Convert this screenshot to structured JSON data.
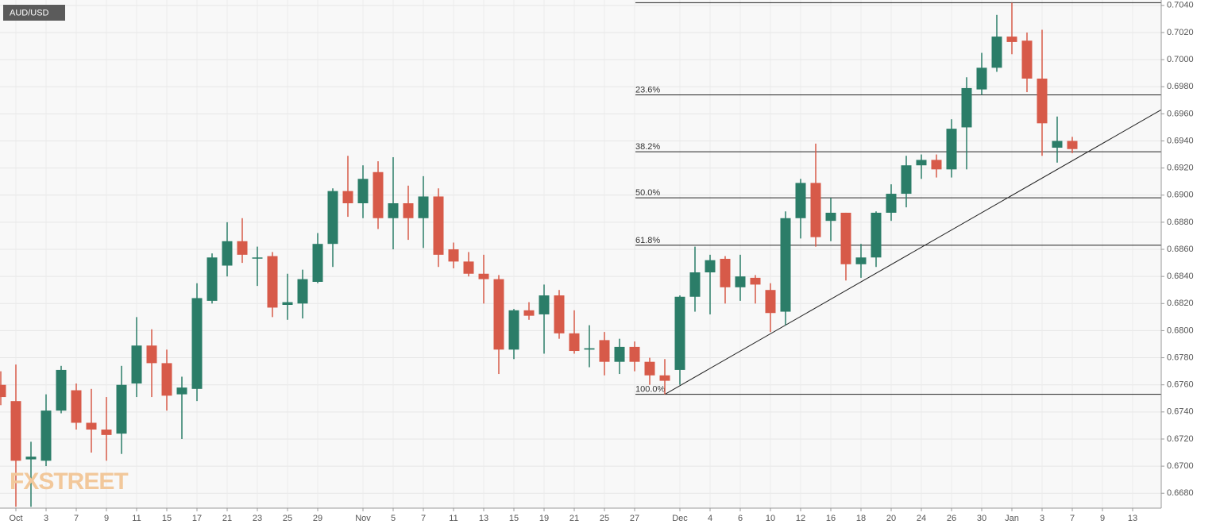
{
  "chart_data": {
    "type": "candlestick",
    "title": "AUD/USD",
    "watermark": "FXSTREET",
    "categories": [
      null,
      "Oct",
      null,
      "3",
      null,
      "7",
      null,
      "9",
      null,
      "11",
      null,
      "15",
      null,
      "17",
      null,
      "21",
      null,
      "23",
      null,
      "25",
      null,
      "29",
      null,
      null,
      "Nov",
      null,
      "5",
      null,
      "7",
      null,
      "11",
      null,
      "13",
      null,
      "15",
      null,
      "19",
      null,
      "21",
      null,
      "25",
      null,
      "27",
      null,
      null,
      "Dec",
      null,
      "4",
      null,
      "6",
      null,
      "10",
      null,
      "12",
      null,
      "16",
      null,
      "18",
      null,
      "20",
      null,
      "24",
      null,
      "26",
      null,
      "30",
      null,
      "Jan",
      null,
      "3",
      null,
      "7",
      null,
      "9",
      null,
      "13"
    ],
    "open": [
      0.676,
      0.6748,
      0.6705,
      0.6704,
      0.6741,
      0.6756,
      0.6732,
      0.6727,
      0.6724,
      0.6761,
      0.6789,
      0.6776,
      0.6753,
      0.6757,
      0.6822,
      0.6848,
      0.6866,
      0.6854,
      0.6855,
      0.6819,
      0.682,
      0.6836,
      0.6864,
      0.6903,
      0.6894,
      0.6917,
      0.6883,
      0.6894,
      0.6883,
      0.6899,
      0.686,
      0.6851,
      0.6842,
      0.6838,
      0.6786,
      0.6815,
      0.6812,
      0.6826,
      0.6798,
      0.6786,
      0.6793,
      0.6777,
      0.6788,
      0.6777,
      0.6767,
      0.6771,
      0.6825,
      0.6843,
      0.6853,
      0.6832,
      0.6839,
      0.683,
      0.6814,
      0.6883,
      0.6909,
      0.6881,
      0.6887,
      0.6849,
      0.6854,
      0.6887,
      0.6901,
      0.6922,
      0.6926,
      0.6919,
      0.695,
      0.6978,
      0.6994,
      0.7017,
      0.7014,
      0.6986,
      0.6935,
      0.694,
      null,
      null,
      null,
      null
    ],
    "close": [
      0.6751,
      0.6704,
      0.6707,
      0.6741,
      0.6771,
      0.6732,
      0.6727,
      0.6723,
      0.676,
      0.6789,
      0.6776,
      0.6752,
      0.6758,
      0.6824,
      0.6854,
      0.6866,
      0.6856,
      0.6854,
      0.6817,
      0.6821,
      0.6838,
      0.6864,
      0.6903,
      0.6894,
      0.6912,
      0.6883,
      0.6894,
      0.6883,
      0.6899,
      0.6856,
      0.6851,
      0.6842,
      0.6838,
      0.6786,
      0.6815,
      0.6811,
      0.6826,
      0.6798,
      0.6785,
      0.6787,
      0.6777,
      0.6788,
      0.6777,
      0.6767,
      0.6763,
      0.6825,
      0.6843,
      0.6852,
      0.6832,
      0.684,
      0.6834,
      0.6813,
      0.6883,
      0.6909,
      0.6869,
      0.6887,
      0.6849,
      0.6854,
      0.6887,
      0.6901,
      0.6922,
      0.6926,
      0.6919,
      0.6949,
      0.6979,
      0.6994,
      0.7017,
      0.7013,
      0.6986,
      0.6953,
      0.694,
      0.6934,
      null,
      null,
      null,
      null
    ],
    "high": [
      0.677,
      0.6775,
      0.6718,
      0.6753,
      0.6774,
      0.6761,
      0.6757,
      0.6751,
      0.6774,
      0.681,
      0.6801,
      0.6786,
      0.6766,
      0.6835,
      0.6857,
      0.688,
      0.6883,
      0.6862,
      0.6858,
      0.6842,
      0.6845,
      0.6872,
      0.6905,
      0.6929,
      0.6922,
      0.6925,
      0.6928,
      0.6907,
      0.6914,
      0.6905,
      0.6865,
      0.6858,
      0.6856,
      0.6841,
      0.6816,
      0.6821,
      0.6834,
      0.683,
      0.6815,
      0.6804,
      0.6799,
      0.6794,
      0.6792,
      0.678,
      0.6779,
      0.6826,
      0.6862,
      0.6856,
      0.6855,
      0.6856,
      0.6841,
      0.6835,
      0.6888,
      0.6912,
      0.6938,
      0.6898,
      0.6887,
      0.6864,
      0.6888,
      0.6908,
      0.6929,
      0.693,
      0.693,
      0.6956,
      0.6987,
      0.7005,
      0.7033,
      0.7042,
      0.702,
      0.7022,
      0.6958,
      0.6943,
      null,
      null,
      null,
      null
    ],
    "low": [
      0.6745,
      0.667,
      0.667,
      0.67,
      0.6739,
      0.6727,
      0.671,
      0.6704,
      0.6709,
      0.6751,
      0.6751,
      0.6741,
      0.672,
      0.6748,
      0.682,
      0.684,
      0.685,
      0.6833,
      0.681,
      0.6808,
      0.6809,
      0.6835,
      0.6847,
      0.6884,
      0.6883,
      0.6875,
      0.686,
      0.6867,
      0.6861,
      0.6847,
      0.6846,
      0.684,
      0.682,
      0.6768,
      0.6779,
      0.6808,
      0.6783,
      0.6794,
      0.6783,
      0.6773,
      0.6767,
      0.6768,
      0.677,
      0.676,
      0.6753,
      0.676,
      0.6814,
      0.6812,
      0.682,
      0.6822,
      0.682,
      0.6799,
      0.6804,
      0.6868,
      0.6862,
      0.6866,
      0.6837,
      0.6839,
      0.6847,
      0.6881,
      0.6891,
      0.6912,
      0.6913,
      0.6913,
      0.6919,
      0.6974,
      0.6991,
      0.7004,
      0.6976,
      0.6929,
      0.6924,
      0.6931,
      null,
      null,
      null,
      null
    ],
    "up_color": "#2b7d68",
    "down_color": "#d75a49",
    "ylim": [
      0.6669,
      0.7044
    ],
    "yticks": [
      {
        "value": 0.668,
        "label": "0.6680"
      },
      {
        "value": 0.67,
        "label": "0.6700"
      },
      {
        "value": 0.672,
        "label": "0.6720"
      },
      {
        "value": 0.674,
        "label": "0.6740"
      },
      {
        "value": 0.676,
        "label": "0.6760"
      },
      {
        "value": 0.678,
        "label": "0.6780"
      },
      {
        "value": 0.68,
        "label": "0.6800"
      },
      {
        "value": 0.682,
        "label": "0.6820"
      },
      {
        "value": 0.684,
        "label": "0.6840"
      },
      {
        "value": 0.686,
        "label": "0.6860"
      },
      {
        "value": 0.688,
        "label": "0.6880"
      },
      {
        "value": 0.69,
        "label": "0.6900"
      },
      {
        "value": 0.692,
        "label": "0.6920"
      },
      {
        "value": 0.694,
        "label": "0.6940"
      },
      {
        "value": 0.696,
        "label": "0.6960"
      },
      {
        "value": 0.698,
        "label": "0.6980"
      },
      {
        "value": 0.7,
        "label": "0.7000"
      },
      {
        "value": 0.702,
        "label": "0.7020"
      },
      {
        "value": 0.704,
        "label": "0.7040"
      }
    ],
    "grid": true,
    "fib_levels": [
      {
        "value": 0.7042
      },
      {
        "value": 0.6974,
        "label": "23.6%"
      },
      {
        "value": 0.6932,
        "label": "38.2%"
      },
      {
        "value": 0.6898,
        "label": "50.0%"
      },
      {
        "value": 0.6863,
        "label": "61.8%"
      },
      {
        "value": 0.6753,
        "label": "100.0%"
      }
    ],
    "trendline": {
      "x": [
        44,
        76.9
      ],
      "values": [
        0.6753,
        0.6963
      ]
    }
  }
}
